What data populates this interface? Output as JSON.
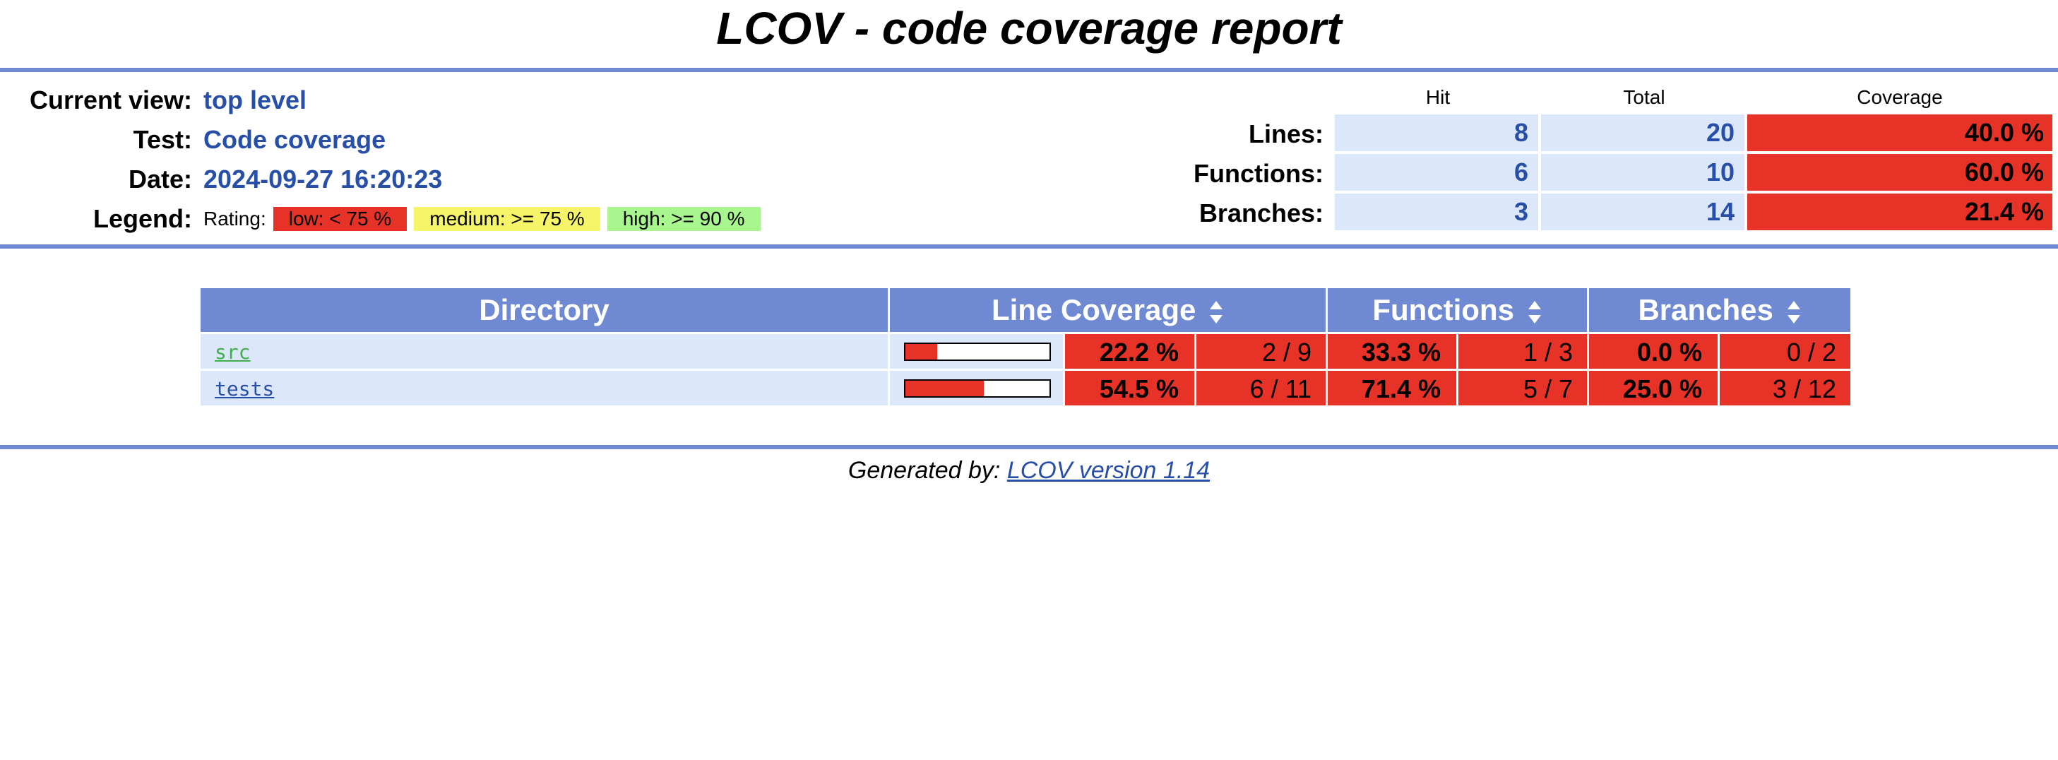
{
  "title": "LCOV - code coverage report",
  "info": {
    "current_view_label": "Current view:",
    "current_view_value": "top level",
    "test_label": "Test:",
    "test_value": "Code coverage",
    "date_label": "Date:",
    "date_value": "2024-09-27 16:20:23",
    "legend_label": "Legend:",
    "legend_rating": "Rating:",
    "legend_low": "low: < 75 %",
    "legend_medium": "medium: >= 75 %",
    "legend_high": "high: >= 90 %"
  },
  "summary": {
    "headers": {
      "hit": "Hit",
      "total": "Total",
      "coverage": "Coverage"
    },
    "rows": [
      {
        "label": "Lines:",
        "hit": "8",
        "total": "20",
        "coverage": "40.0 %"
      },
      {
        "label": "Functions:",
        "hit": "6",
        "total": "10",
        "coverage": "60.0 %"
      },
      {
        "label": "Branches:",
        "hit": "3",
        "total": "14",
        "coverage": "21.4 %"
      }
    ]
  },
  "table": {
    "headers": {
      "directory": "Directory",
      "line_coverage": "Line Coverage",
      "functions": "Functions",
      "branches": "Branches"
    },
    "rows": [
      {
        "name": "src",
        "link_color": "#3fb04a",
        "line_fraction": 0.222,
        "line_pct": "22.2 %",
        "line_count": "2 / 9",
        "func_pct": "33.3 %",
        "func_count": "1 / 3",
        "branch_pct": "0.0 %",
        "branch_count": "0 / 2"
      },
      {
        "name": "tests",
        "link_color": "#284fa8",
        "line_fraction": 0.545,
        "line_pct": "54.5 %",
        "line_count": "6 / 11",
        "func_pct": "71.4 %",
        "func_count": "5 / 7",
        "branch_pct": "25.0 %",
        "branch_count": "3 / 12"
      }
    ]
  },
  "footer": {
    "prefix": "Generated by:",
    "link_text": "LCOV version 1.14"
  },
  "colors": {
    "accent": "#6f8ad2",
    "low": "#e63227",
    "medium": "#f6f468",
    "high": "#a9f58e",
    "cell_bg": "#dde7fa",
    "value_text": "#284fa8"
  }
}
